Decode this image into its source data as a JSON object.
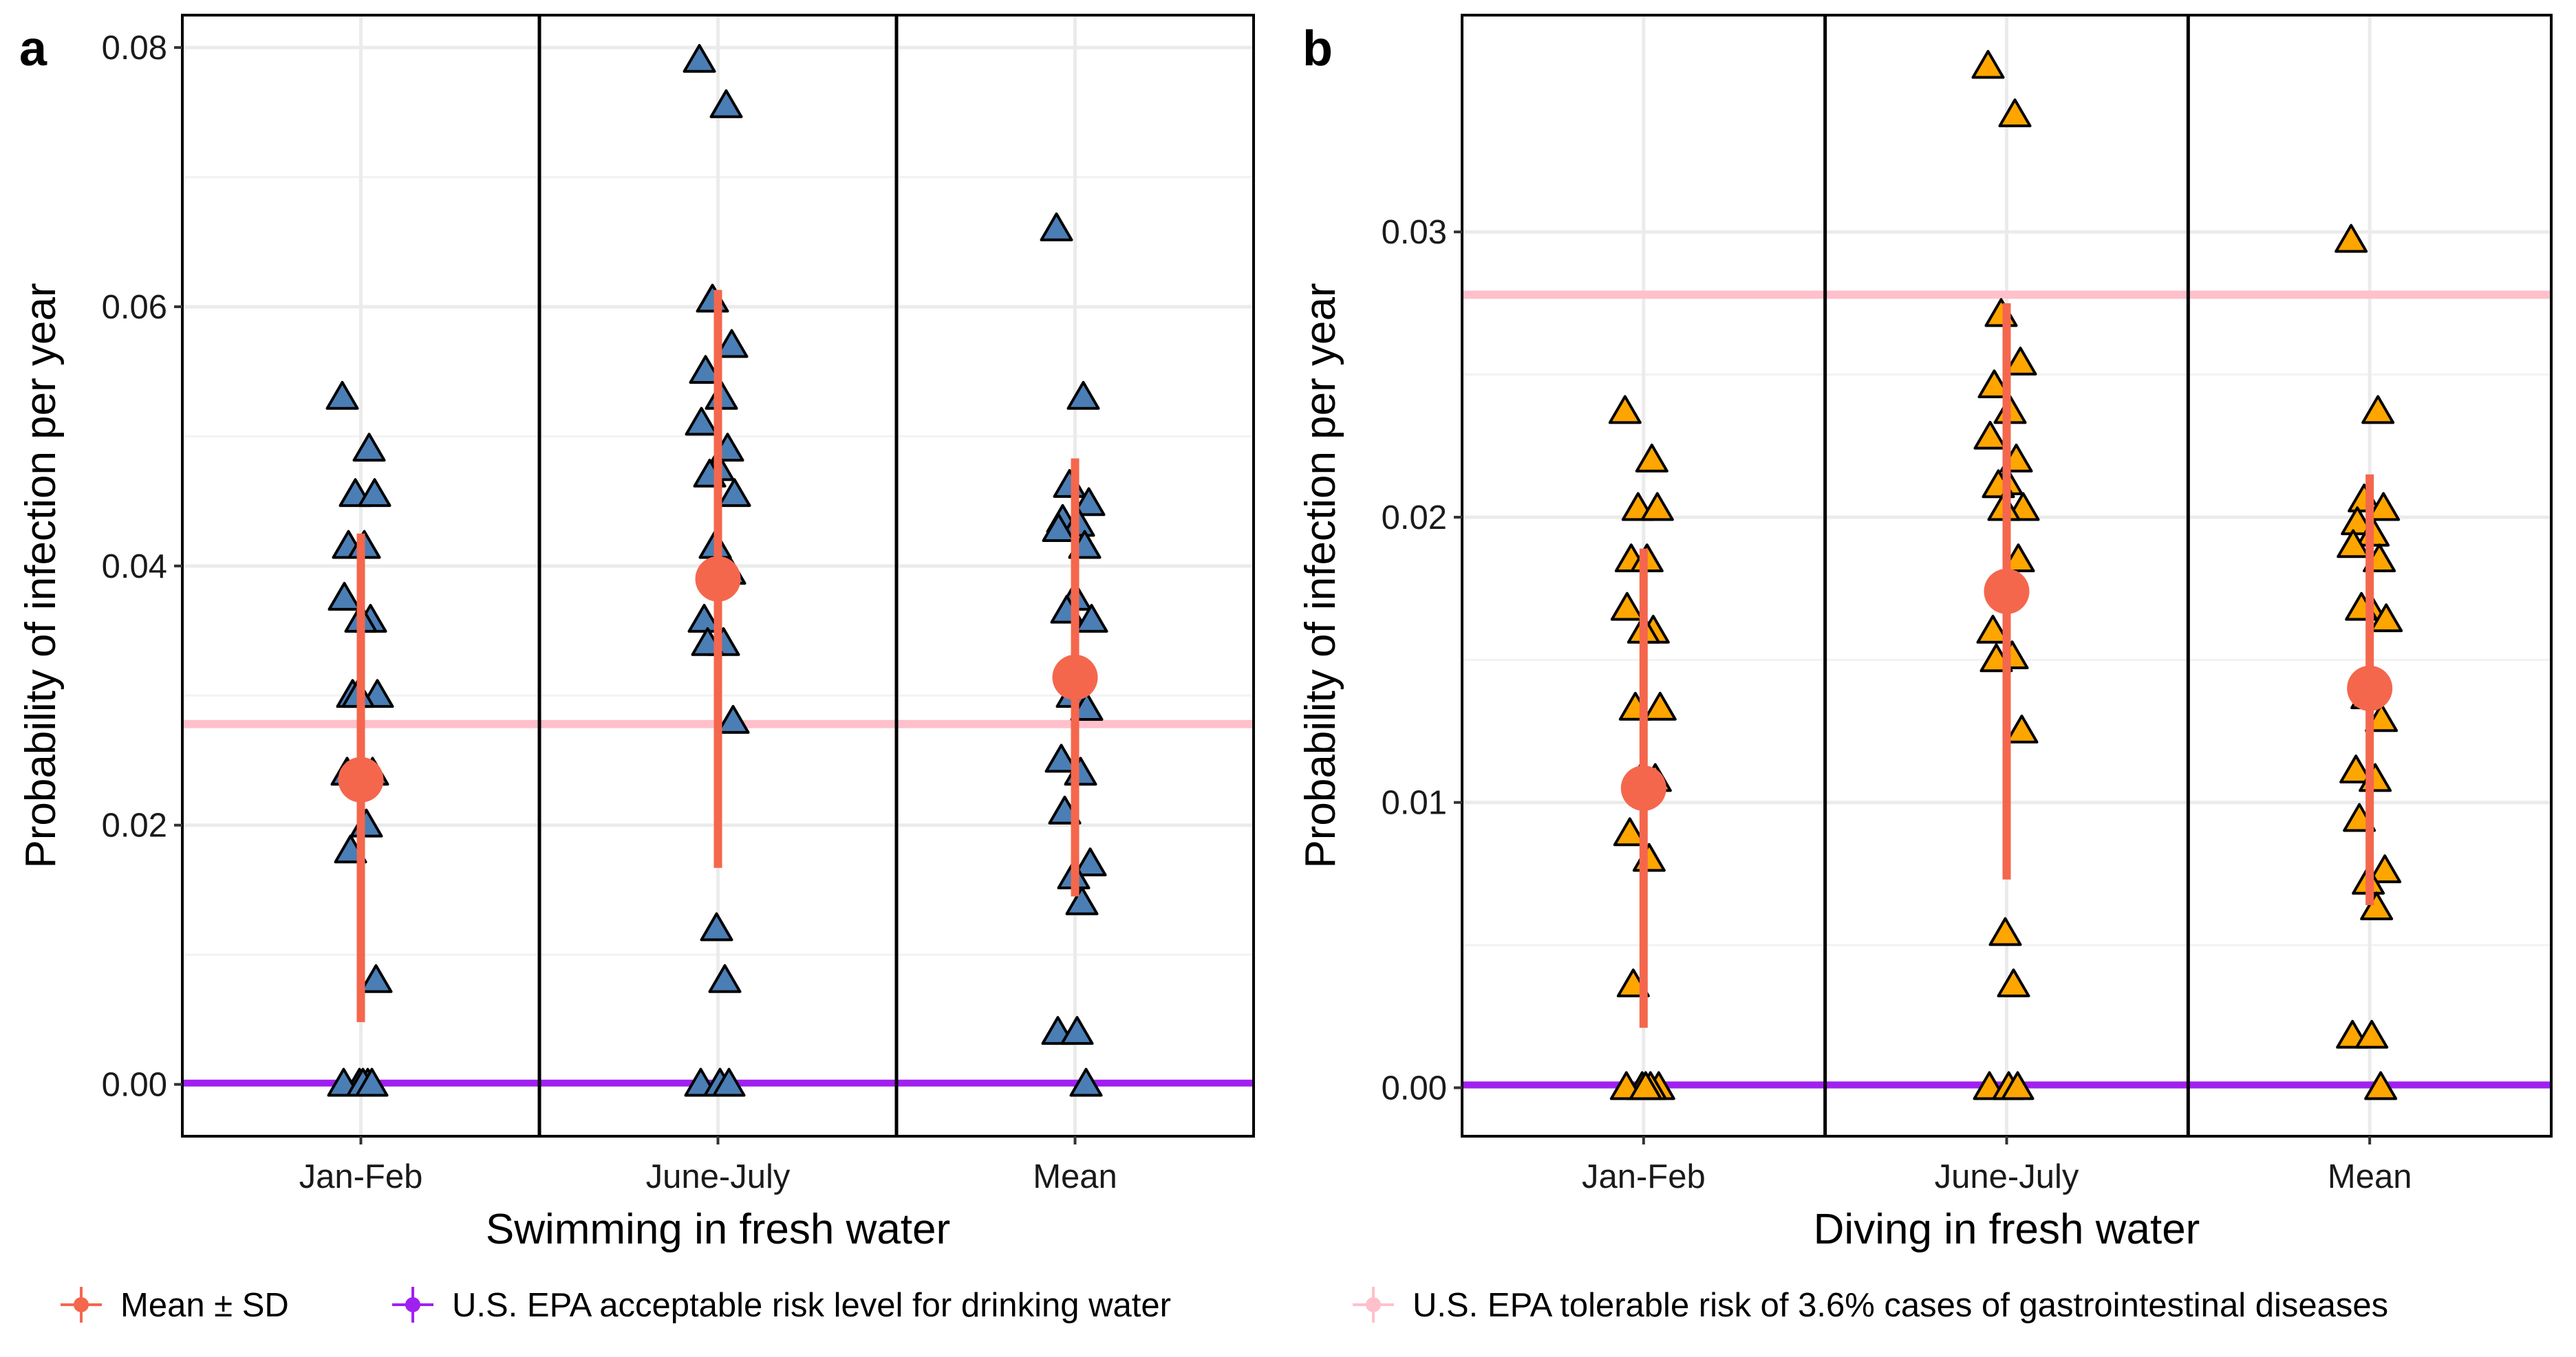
{
  "chart_data": [
    {
      "type": "scatter",
      "panel_label": "a",
      "xlabel": "Swimming in fresh water",
      "ylabel": "Probability of infection per year",
      "categories": [
        "Jan-Feb",
        "June-July",
        "Mean"
      ],
      "ylim": [
        -0.004,
        0.0825
      ],
      "yticks": [
        0.0,
        0.02,
        0.04,
        0.06,
        0.08
      ],
      "ytick_labels": [
        "0.00",
        "0.02",
        "0.04",
        "0.06",
        "0.08"
      ],
      "grid": true,
      "points": [
        [
          0.053,
          0.049,
          0.0455,
          0.0455,
          0.0415,
          0.0415,
          0.0375,
          0.0358,
          0.0358,
          0.03,
          0.03,
          0.03,
          0.024,
          0.024,
          0.02,
          0.018,
          0.008,
          0.0,
          0.0,
          0.0,
          0.0,
          0.0
        ],
        [
          0.079,
          0.0755,
          0.0605,
          0.057,
          0.055,
          0.053,
          0.051,
          0.049,
          0.0475,
          0.047,
          0.0455,
          0.0415,
          0.0395,
          0.0358,
          0.034,
          0.034,
          0.028,
          0.012,
          0.008,
          0.0,
          0.0,
          0.0
        ],
        [
          0.066,
          0.053,
          0.0462,
          0.0448,
          0.0435,
          0.0432,
          0.0428,
          0.0415,
          0.0375,
          0.0365,
          0.0358,
          0.03,
          0.029,
          0.025,
          0.024,
          0.021,
          0.017,
          0.016,
          0.014,
          0.004,
          0.004,
          0.0
        ]
      ],
      "summary": [
        {
          "mean": 0.0235,
          "low": 0.0048,
          "high": 0.0425
        },
        {
          "mean": 0.039,
          "low": 0.0167,
          "high": 0.0613
        },
        {
          "mean": 0.0314,
          "low": 0.0145,
          "high": 0.0483
        }
      ],
      "reference_lines": {
        "epa_drinking_water": 0.0001,
        "epa_tolerable": 0.0278
      }
    },
    {
      "type": "scatter",
      "panel_label": "b",
      "xlabel": "Diving in fresh water",
      "ylabel": "Probability of infection per year",
      "categories": [
        "Jan-Feb",
        "June-July",
        "Mean"
      ],
      "ylim": [
        -0.0017,
        0.0376
      ],
      "yticks": [
        0.0,
        0.01,
        0.02,
        0.03
      ],
      "ytick_labels": [
        "0.00",
        "0.01",
        "0.02",
        "0.03"
      ],
      "grid": true,
      "points": [
        [
          0.0237,
          0.022,
          0.0203,
          0.0203,
          0.0185,
          0.0185,
          0.0168,
          0.016,
          0.016,
          0.0133,
          0.0133,
          0.0108,
          0.0108,
          0.0089,
          0.008,
          0.0036,
          0.0,
          0.0,
          0.0,
          0.0,
          0.0
        ],
        [
          0.0358,
          0.0341,
          0.0271,
          0.0254,
          0.0246,
          0.0237,
          0.0228,
          0.022,
          0.0212,
          0.0211,
          0.0203,
          0.0203,
          0.0185,
          0.016,
          0.0151,
          0.015,
          0.0125,
          0.0054,
          0.0036,
          0.0,
          0.0,
          0.0
        ],
        [
          0.0297,
          0.0237,
          0.0206,
          0.0203,
          0.0198,
          0.0194,
          0.019,
          0.0185,
          0.0168,
          0.0168,
          0.0164,
          0.0137,
          0.0129,
          0.0111,
          0.0108,
          0.0094,
          0.0076,
          0.0072,
          0.0063,
          0.0018,
          0.0018,
          0.0
        ]
      ],
      "summary": [
        {
          "mean": 0.0105,
          "low": 0.0021,
          "high": 0.0189
        },
        {
          "mean": 0.0174,
          "low": 0.0073,
          "high": 0.0275
        },
        {
          "mean": 0.014,
          "low": 0.0064,
          "high": 0.0215
        }
      ],
      "reference_lines": {
        "epa_drinking_water": 0.0001,
        "epa_tolerable": 0.0278
      }
    }
  ],
  "legend": {
    "placement": "bottom",
    "items": [
      {
        "label": "Mean ± SD",
        "color": "#F4674D"
      },
      {
        "label": "U.S. EPA acceptable risk level for drinking water",
        "color": "#A020F0"
      },
      {
        "label": "U.S. EPA tolerable risk of 3.6% cases of gastrointestinal diseases",
        "color": "#FFC0CB"
      }
    ]
  },
  "colors": {
    "panel_a_points": "#4A7EB5",
    "panel_b_points": "#FFA500",
    "mean_sd": "#F4674D",
    "epa_drinking_water": "#A020F0",
    "epa_tolerable": "#FFC0CB",
    "grid": "#EBEBEB"
  }
}
